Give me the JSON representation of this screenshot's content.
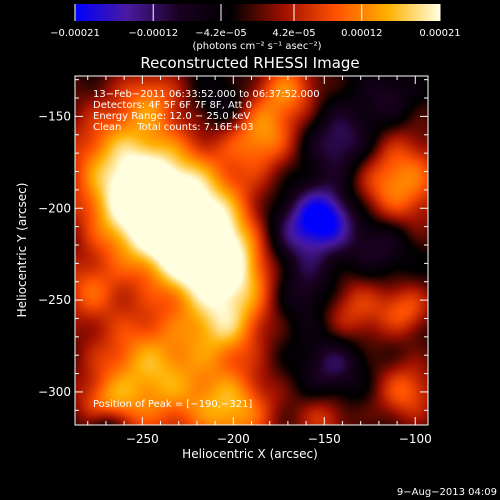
{
  "chart_data": {
    "type": "heatmap",
    "title": "Reconstructed RHESSI Image",
    "xlabel": "Heliocentric X (arcsec)",
    "ylabel": "Heliocentric Y (arcsec)",
    "xlim": [
      -287,
      -93
    ],
    "ylim": [
      -318,
      -128
    ],
    "x_ticks": [
      -250,
      -200,
      -150,
      -100
    ],
    "y_ticks": [
      -150,
      -200,
      -250,
      -300
    ],
    "x_tick_labels": [
      "−250",
      "−200",
      "−150",
      "−100"
    ],
    "y_tick_labels": [
      "−150",
      "−200",
      "−250",
      "−300"
    ],
    "colorbar": {
      "range": [
        -0.00021,
        0.00021
      ],
      "ticks": [
        -0.00021,
        -0.00012,
        -4.2e-05,
        4.2e-05,
        0.00012,
        0.00021
      ],
      "tick_labels": [
        "−0.00021",
        "−0.00012",
        "−4.2e−05",
        "4.2e−05",
        "0.00012",
        "0.00021"
      ],
      "unit_label": "(photons cm⁻² s⁻¹ asec⁻²)",
      "colors": [
        "#0000ff",
        "#4a1aa0",
        "#1a0020",
        "#000000",
        "#a01000",
        "#ff5000",
        "#ffb000",
        "#ffffe0"
      ]
    },
    "annotations": {
      "time": "13−Feb−2011 06:33:52.000 to 06:37:52.000",
      "detectors": "Detectors: 4F 5F 6F 7F 8F, Att 0",
      "energy": "Energy Range: 12.0 − 25.0 keV",
      "method": "Clean     Total counts: 7.16E+03",
      "peak": "Position of Peak = [−190,−321]"
    },
    "blobs": [
      {
        "x": -225,
        "y": -205,
        "v": 1.0,
        "s": 24
      },
      {
        "x": -250,
        "y": -200,
        "v": 0.85,
        "s": 22
      },
      {
        "x": -262,
        "y": -170,
        "v": 0.6,
        "s": 22
      },
      {
        "x": -200,
        "y": -235,
        "v": 0.85,
        "s": 20
      },
      {
        "x": -205,
        "y": -265,
        "v": 0.55,
        "s": 14
      },
      {
        "x": -245,
        "y": -290,
        "v": 0.85,
        "s": 24
      },
      {
        "x": -200,
        "y": -310,
        "v": 0.75,
        "s": 16
      },
      {
        "x": -280,
        "y": -245,
        "v": 0.45,
        "s": 12
      },
      {
        "x": -185,
        "y": -160,
        "v": 0.7,
        "s": 14
      },
      {
        "x": -245,
        "y": -140,
        "v": 0.45,
        "s": 12
      },
      {
        "x": -110,
        "y": -185,
        "v": 0.75,
        "s": 18
      },
      {
        "x": -170,
        "y": -135,
        "v": 0.6,
        "s": 12
      },
      {
        "x": -135,
        "y": -255,
        "v": 0.5,
        "s": 14
      },
      {
        "x": -105,
        "y": -255,
        "v": 0.5,
        "s": 10
      },
      {
        "x": -105,
        "y": -300,
        "v": 0.55,
        "s": 12
      },
      {
        "x": -150,
        "y": -315,
        "v": 0.4,
        "s": 10
      },
      {
        "x": -220,
        "y": -225,
        "v": 0.5,
        "s": 14
      },
      {
        "x": -270,
        "y": -310,
        "v": 0.5,
        "s": 10
      },
      {
        "x": -150,
        "y": -205,
        "v": -0.9,
        "s": 12
      },
      {
        "x": -170,
        "y": -215,
        "v": -0.5,
        "s": 14
      },
      {
        "x": -140,
        "y": -165,
        "v": -0.55,
        "s": 14
      },
      {
        "x": -160,
        "y": -245,
        "v": -0.45,
        "s": 14
      },
      {
        "x": -120,
        "y": -220,
        "v": -0.4,
        "s": 12
      },
      {
        "x": -145,
        "y": -285,
        "v": -0.45,
        "s": 12
      },
      {
        "x": -270,
        "y": -318,
        "v": -0.6,
        "s": 8
      },
      {
        "x": -205,
        "y": -145,
        "v": -0.3,
        "s": 10
      },
      {
        "x": -115,
        "y": -140,
        "v": -0.3,
        "s": 10
      }
    ]
  },
  "footer": {
    "timestamp": "9−Aug−2013 04:09"
  }
}
